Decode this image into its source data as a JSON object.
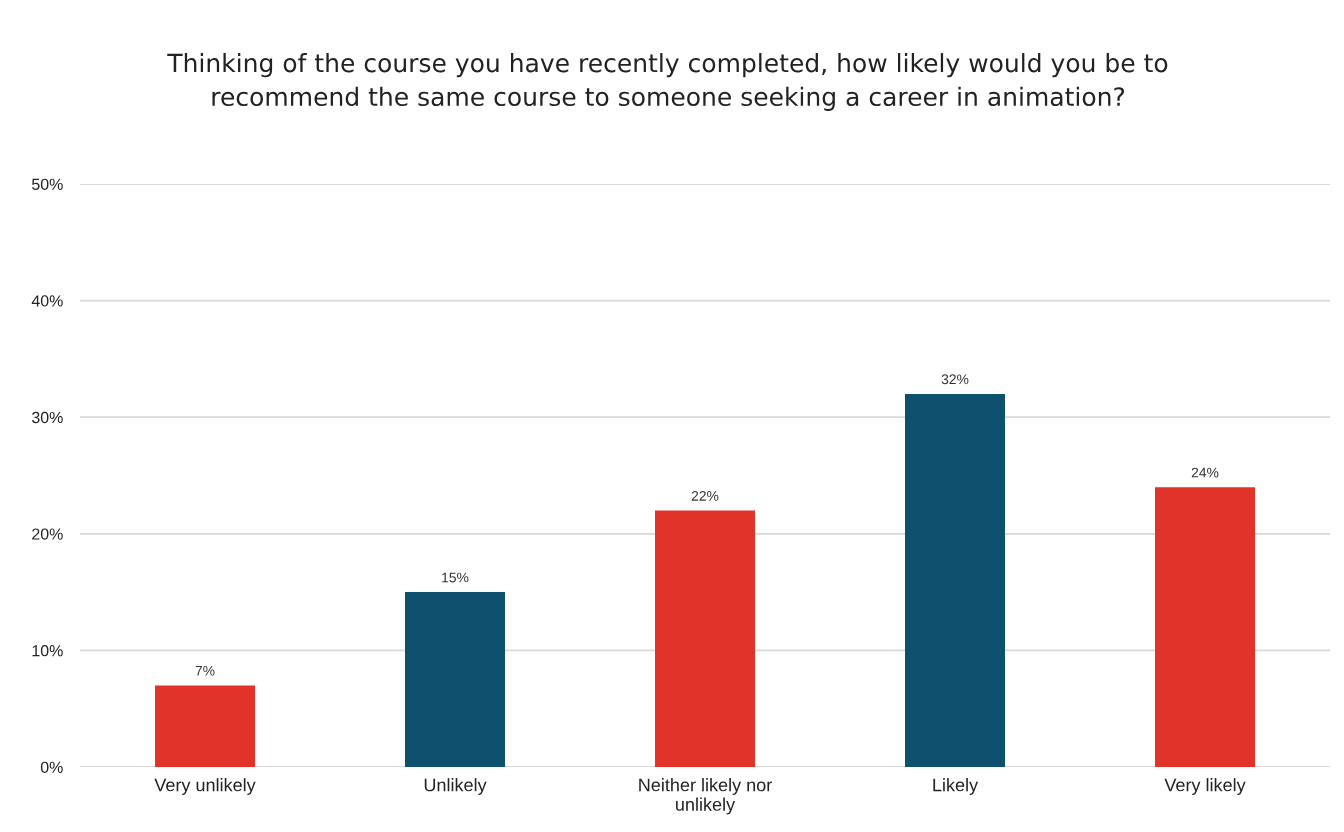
{
  "chart_data": {
    "type": "bar",
    "title": "Thinking of the course you have recently completed, how likely would you be to\nrecommend the same course to someone seeking a career in animation?",
    "categories": [
      "Very unlikely",
      "Unlikely",
      "Neither likely nor\nunlikely",
      "Likely",
      "Very likely"
    ],
    "values": [
      7,
      15,
      22,
      32,
      24
    ],
    "colors": [
      "#e0332a",
      "#0e506e",
      "#e0332a",
      "#0e506e",
      "#e0332a"
    ],
    "value_labels": [
      "7%",
      "15%",
      "22%",
      "32%",
      "24%"
    ],
    "ylim": [
      0,
      50
    ],
    "yticks": [
      {
        "value": 0,
        "label": "0%"
      },
      {
        "value": 10,
        "label": "10%"
      },
      {
        "value": 20,
        "label": "20%"
      },
      {
        "value": 30,
        "label": "30%"
      },
      {
        "value": 40,
        "label": "40%"
      },
      {
        "value": 50,
        "label": "50%"
      }
    ],
    "grid": "y",
    "legend": false
  }
}
